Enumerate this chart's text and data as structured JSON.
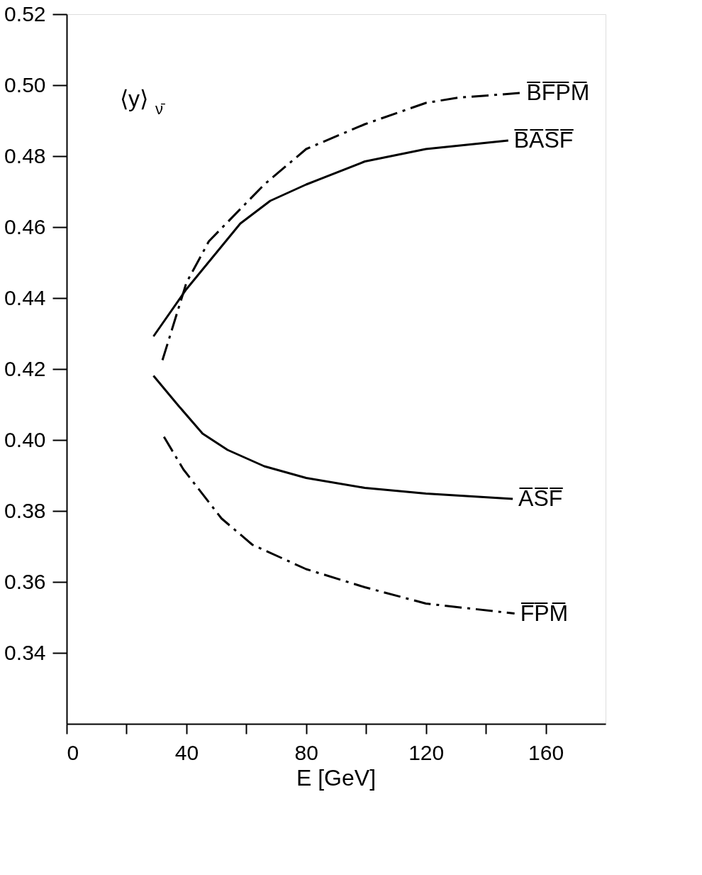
{
  "chart_data": {
    "type": "line",
    "xlabel": "E [GeV]",
    "xlim": [
      0,
      180
    ],
    "ylim": [
      0.32,
      0.52
    ],
    "xticks": [
      0,
      {
        "value": 20,
        "label": null
      },
      40,
      {
        "value": 60,
        "label": null
      },
      80,
      {
        "value": 100,
        "label": null
      },
      120,
      {
        "value": 140,
        "label": null
      },
      160
    ],
    "yticks": [
      {
        "value": 0.34,
        "label": "0.34"
      },
      {
        "value": 0.36,
        "label": "0.36"
      },
      {
        "value": 0.38,
        "label": "0.38"
      },
      {
        "value": 0.4,
        "label": "0.40"
      },
      {
        "value": 0.42,
        "label": "0.42"
      },
      {
        "value": 0.44,
        "label": "0.44"
      },
      {
        "value": 0.46,
        "label": "0.46"
      },
      {
        "value": 0.48,
        "label": "0.48"
      },
      {
        "value": 0.5,
        "label": "0.50"
      },
      {
        "value": 0.52,
        "label": "0.52"
      }
    ],
    "annotations": [
      "⟨y⟩$_{ν̄}$"
    ],
    "grid": false,
    "legend": false,
    "marker": "none",
    "series": [
      {
        "name": "B̅F̅P̅M̅",
        "color": "#000000",
        "line_style": "dashed",
        "x": [
          32,
          40,
          47.5,
          66,
          80,
          99.6,
          120,
          131,
          151.7
        ],
        "values": [
          0.4225,
          0.4443,
          0.456,
          0.472,
          0.482,
          0.489,
          0.495,
          0.4965,
          0.4978
        ]
      },
      {
        "name": "B̅A̅S̅F̅",
        "color": "#000000",
        "line_style": "solid",
        "x": [
          29,
          40,
          58,
          68,
          80,
          99.6,
          120,
          147.5
        ],
        "values": [
          0.4292,
          0.4425,
          0.461,
          0.4674,
          0.472,
          0.4785,
          0.482,
          0.4844
        ]
      },
      {
        "name": "A̅S̅F̅",
        "color": "#000000",
        "line_style": "solid",
        "x": [
          29,
          37,
          45.4,
          53.75,
          66,
          80,
          99.6,
          120,
          149
        ],
        "values": [
          0.4181,
          0.41,
          0.4018,
          0.3972,
          0.3926,
          0.3893,
          0.3865,
          0.3849,
          0.3834
        ]
      },
      {
        "name": "F̅P̅M̅",
        "color": "#000000",
        "line_style": "dashed",
        "x": [
          32.5,
          39,
          51.7,
          62,
          80,
          99.6,
          120,
          149.6
        ],
        "values": [
          0.4009,
          0.3917,
          0.3779,
          0.3705,
          0.3636,
          0.3585,
          0.3539,
          0.3511
        ]
      }
    ]
  }
}
